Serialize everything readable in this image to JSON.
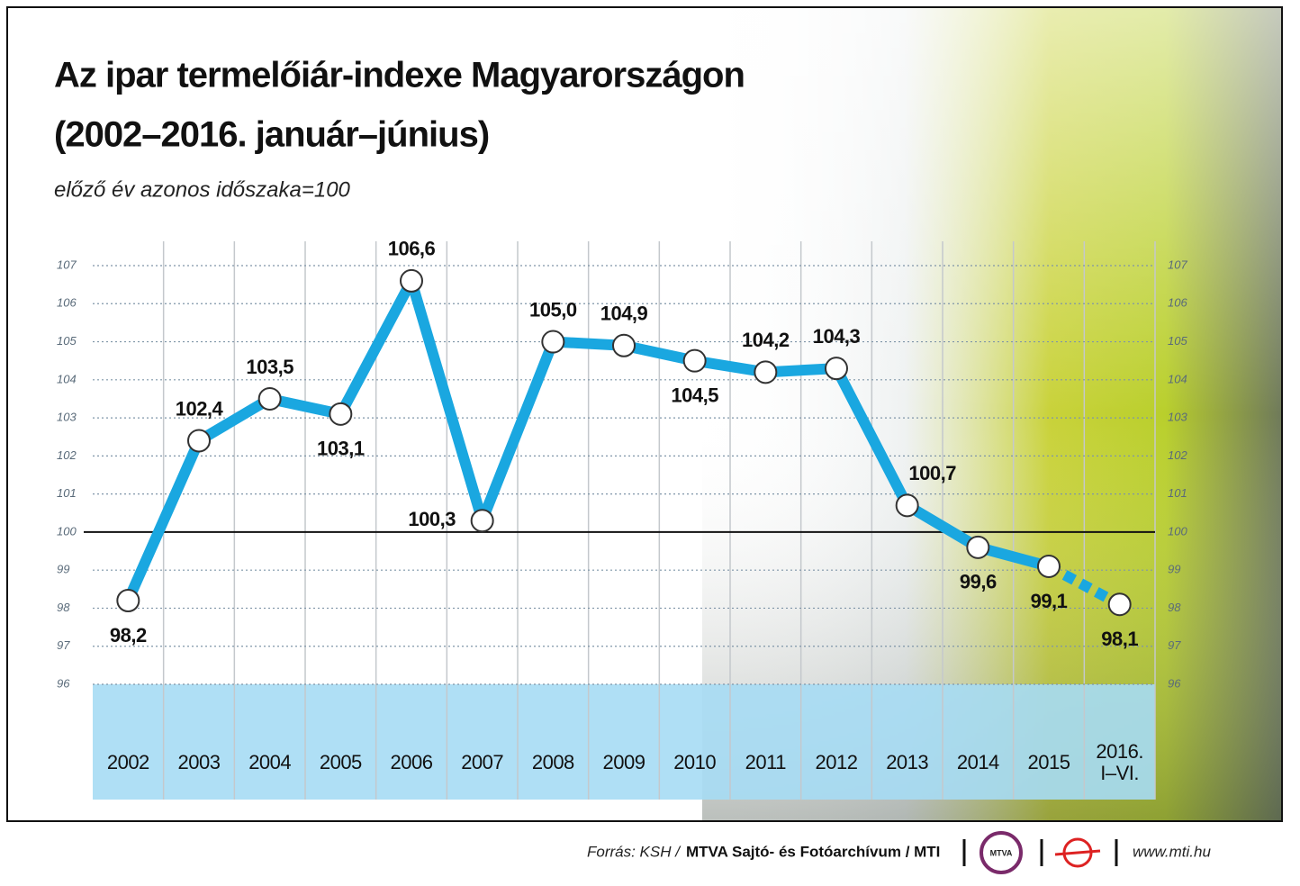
{
  "chart_data": {
    "type": "line",
    "title": [
      "Az ipar termelőiár-indexe Magyarországon",
      "(2002–2016. január–június)"
    ],
    "subtitle": "előző év azonos időszaka=100",
    "categories": [
      "2002",
      "2003",
      "2004",
      "2005",
      "2006",
      "2007",
      "2008",
      "2009",
      "2010",
      "2011",
      "2012",
      "2013",
      "2014",
      "2015",
      "2016. I–VI."
    ],
    "values": [
      98.2,
      102.4,
      103.5,
      103.1,
      106.6,
      100.3,
      105.0,
      104.9,
      104.5,
      104.2,
      104.3,
      100.7,
      99.6,
      99.1,
      98.1
    ],
    "value_labels": [
      "98,2",
      "102,4",
      "103,5",
      "103,1",
      "106,6",
      "100,3",
      "105,0",
      "104,9",
      "104,5",
      "104,2",
      "104,3",
      "100,7",
      "99,6",
      "99,1",
      "98,1"
    ],
    "color": "#1aa7e0",
    "ylim": [
      96,
      107
    ],
    "yticks": [
      96,
      97,
      98,
      99,
      100,
      101,
      102,
      103,
      104,
      105,
      106,
      107
    ],
    "reference_line": 100,
    "grid": true,
    "last_segment_dashed": true
  },
  "footer": {
    "source": "Forrás: KSH /",
    "archive": "MTVA Sajtó- és Fotóarchívum / MTI",
    "logo": "MTVA",
    "url": "www.mti.hu"
  }
}
